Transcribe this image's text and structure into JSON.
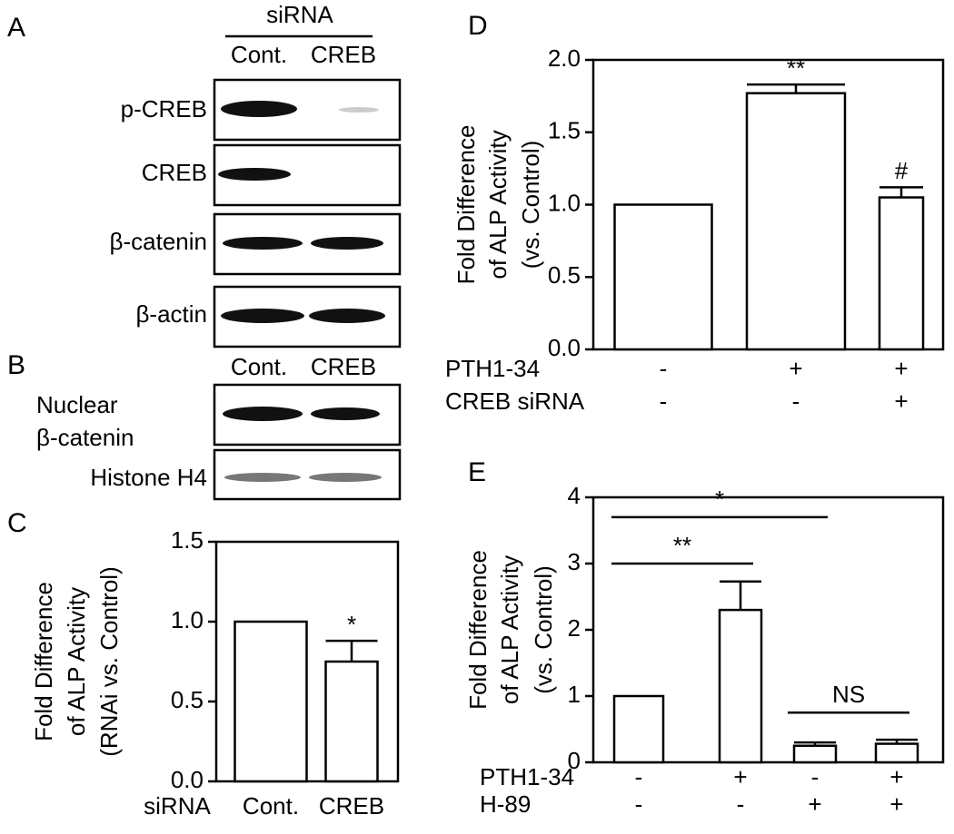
{
  "blots": [
    {
      "label": "A",
      "header": "siRNA",
      "columns": [
        "Cont.",
        "CREB"
      ],
      "rows": [
        "p-CREB",
        "CREB",
        "β-catenin",
        "β-actin"
      ]
    },
    {
      "label": "B",
      "columns": [
        "Cont.",
        "CREB"
      ],
      "rows": [
        "Nuclear",
        "β-catenin",
        "Histone H4"
      ]
    }
  ],
  "chart_data": [
    {
      "type": "bar",
      "label": "C",
      "ylabel": [
        "Fold Difference",
        "of ALP Activity",
        "(RNAi vs. Control)"
      ],
      "xlabel": "siRNA",
      "categories": [
        "Cont.",
        "CREB"
      ],
      "values": [
        1.0,
        0.75
      ],
      "errors": [
        null,
        0.13
      ],
      "annotations": [
        "*"
      ],
      "color": "#ffffff",
      "ylim": [
        0,
        1.5
      ],
      "yticks": [
        {
          "value": 0,
          "label": "0.0"
        },
        0.5,
        {
          "value": 1,
          "label": "1.0"
        },
        1.5
      ]
    },
    {
      "type": "bar",
      "label": "D",
      "ylabel": [
        "Fold Difference",
        "of ALP Activity",
        "(vs. Control)"
      ],
      "factors": [
        {
          "name": "PTH1-34",
          "levels": [
            "-",
            "+",
            "+"
          ]
        },
        {
          "name": "CREB siRNA",
          "levels": [
            "-",
            "-",
            "+"
          ]
        }
      ],
      "values": [
        1.0,
        1.77,
        1.05
      ],
      "errors": [
        null,
        0.06,
        0.07
      ],
      "annotations": [
        "**",
        "#"
      ],
      "color": "#ffffff",
      "ylim": [
        0,
        2
      ],
      "yticks": [
        {
          "value": 0,
          "label": "0.0"
        },
        0.5,
        {
          "value": 1,
          "label": "1.0"
        },
        1.5,
        {
          "value": 2,
          "label": "2.0"
        }
      ]
    },
    {
      "type": "bar",
      "label": "E",
      "ylabel": [
        "Fold Difference",
        "of ALP Activity",
        "(vs. Control)"
      ],
      "factors": [
        {
          "name": "PTH1-34",
          "levels": [
            "-",
            "+",
            "-",
            "+"
          ]
        },
        {
          "name": "H-89",
          "levels": [
            "-",
            "-",
            "+",
            "+"
          ]
        }
      ],
      "values": [
        1.0,
        2.3,
        0.25,
        0.28
      ],
      "errors": [
        null,
        0.43,
        0.05,
        0.06
      ],
      "annotations": [
        "*",
        "**",
        "NS"
      ],
      "color": "#ffffff",
      "ylim": [
        0,
        4
      ],
      "yticks": [
        0,
        1,
        2,
        3,
        4
      ]
    }
  ]
}
